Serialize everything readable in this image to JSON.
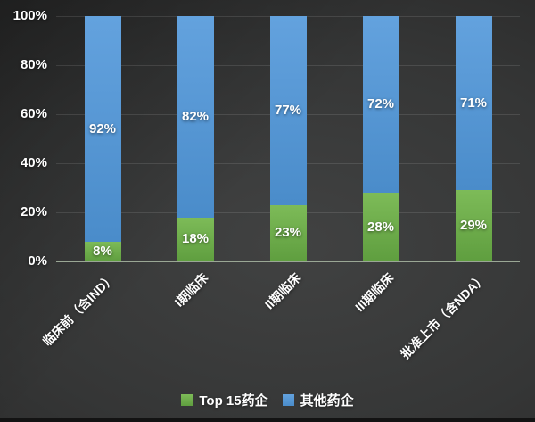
{
  "chart_data": {
    "type": "bar",
    "stacked": true,
    "orientation": "vertical",
    "title": "",
    "xlabel": "",
    "ylabel": "",
    "ylim": [
      0,
      100
    ],
    "y_ticks": [
      "100%",
      "80%",
      "60%",
      "40%",
      "20%",
      "0%"
    ],
    "grid": true,
    "legend_position": "bottom",
    "categories": [
      "临床前（含IND）",
      "I期临床",
      "II期临床",
      "III期临床",
      "批准上市（含NDA）"
    ],
    "series": [
      {
        "name": "Top 15药企",
        "color": "#6aa84a",
        "color_top": "#7dbb58",
        "color_bottom": "#5f9e3f",
        "values": [
          8,
          18,
          23,
          28,
          29
        ],
        "labels": [
          "8%",
          "18%",
          "23%",
          "28%",
          "29%"
        ]
      },
      {
        "name": "其他药企",
        "color": "#4a90d0",
        "color_top": "#63a2de",
        "color_bottom": "#4a8cca",
        "values": [
          92,
          82,
          77,
          72,
          71
        ],
        "labels": [
          "92%",
          "82%",
          "77%",
          "72%",
          "71%"
        ]
      }
    ],
    "axis_line_color": "#9aa795",
    "text_color": "#ffffff"
  }
}
